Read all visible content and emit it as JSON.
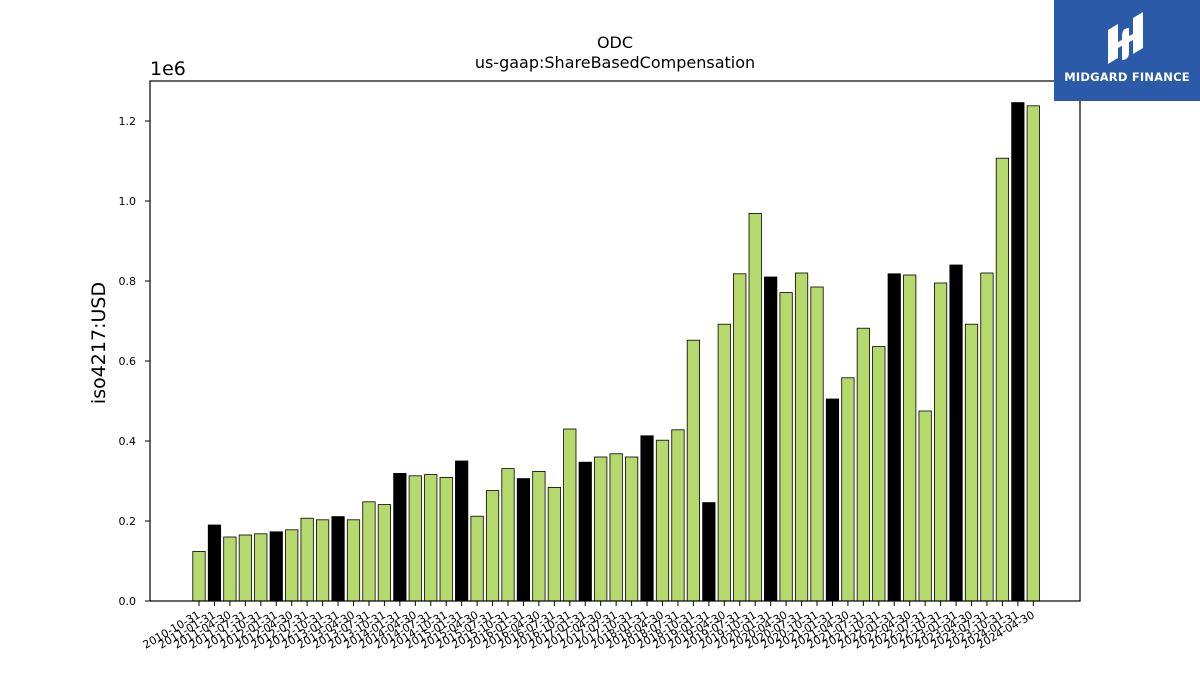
{
  "logo": {
    "text": "MIDGARD FINANCE"
  },
  "colors": {
    "primary_bar": "#b5d96c",
    "highlight_bar": "#000000",
    "logo_bg": "#2a5aa8"
  },
  "chart_data": {
    "type": "bar",
    "title": "ODC",
    "subtitle": "us-gaap:ShareBasedCompensation",
    "xlabel": "",
    "ylabel": "iso4217:USD",
    "y_multiplier_label": "1e6",
    "ylim": [
      0,
      1.3
    ],
    "yticks": [
      0.0,
      0.2,
      0.4,
      0.6,
      0.8,
      1.0,
      1.2
    ],
    "ytick_labels": [
      "0.0",
      "0.2",
      "0.4",
      "0.6",
      "0.8",
      "1.0",
      "1.2"
    ],
    "grid": false,
    "legend": "none",
    "categories": [
      "2010-10-31",
      "2011-01-31",
      "2011-04-30",
      "2011-07-31",
      "2011-10-31",
      "2012-01-31",
      "2012-04-30",
      "2012-07-31",
      "2012-10-31",
      "2013-01-31",
      "2013-04-30",
      "2013-07-31",
      "2013-10-31",
      "2014-01-31",
      "2014-04-30",
      "2014-07-31",
      "2014-10-31",
      "2015-01-31",
      "2015-04-30",
      "2015-07-31",
      "2015-10-31",
      "2016-01-31",
      "2016-04-30",
      "2016-07-31",
      "2016-10-31",
      "2017-01-31",
      "2017-04-30",
      "2017-07-31",
      "2017-10-31",
      "2018-01-31",
      "2018-04-30",
      "2018-07-31",
      "2018-10-31",
      "2019-01-31",
      "2019-04-30",
      "2019-07-31",
      "2019-10-31",
      "2020-01-31",
      "2020-04-30",
      "2020-07-31",
      "2020-10-31",
      "2021-01-31",
      "2021-04-30",
      "2021-07-31",
      "2021-10-31",
      "2022-01-31",
      "2022-04-30",
      "2022-07-31",
      "2022-10-31",
      "2023-01-31",
      "2023-04-30",
      "2023-07-31",
      "2023-10-31",
      "2024-01-31",
      "2024-04-30"
    ],
    "values": [
      0.124,
      0.19,
      0.16,
      0.165,
      0.168,
      0.173,
      0.178,
      0.207,
      0.203,
      0.211,
      0.203,
      0.248,
      0.241,
      0.319,
      0.313,
      0.316,
      0.309,
      0.35,
      0.212,
      0.276,
      0.331,
      0.306,
      0.324,
      0.284,
      0.43,
      0.347,
      0.36,
      0.368,
      0.36,
      0.413,
      0.402,
      0.428,
      0.652,
      0.246,
      0.692,
      0.818,
      0.969,
      0.81,
      0.771,
      0.82,
      0.785,
      0.505,
      0.558,
      0.682,
      0.636,
      0.818,
      0.815,
      0.475,
      0.795,
      0.84,
      0.692,
      0.82,
      1.107,
      1.246,
      1.238
    ],
    "highlight": [
      false,
      true,
      false,
      false,
      false,
      true,
      false,
      false,
      false,
      true,
      false,
      false,
      false,
      true,
      false,
      false,
      false,
      true,
      false,
      false,
      false,
      true,
      false,
      false,
      false,
      true,
      false,
      false,
      false,
      true,
      false,
      false,
      false,
      true,
      false,
      false,
      false,
      true,
      false,
      false,
      false,
      true,
      false,
      false,
      false,
      true,
      false,
      false,
      false,
      true,
      false,
      false,
      false,
      true,
      false
    ]
  }
}
